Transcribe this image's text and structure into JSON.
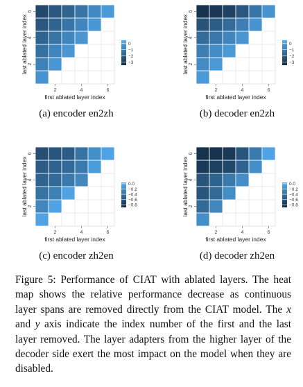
{
  "figure_caption": {
    "before_x": "Figure 5: Performance of CIAT with ablated layers. The heat map shows the relative performance decrease as continuous layer spans are removed directly from the CIAT model. The ",
    "x_var": "x",
    "and_text": " and ",
    "y_var": "y",
    "after_y": " axis indicate the index number of the first and the last layer removed. The layer adapters from the higher layer of the decoder side exert the most impact on the model when they are disabled."
  },
  "chart_data": [
    {
      "type": "heatmap",
      "caption": "(a) encoder en2zh",
      "xlabel": "first ablated layer index",
      "ylabel": "last ablated layer index",
      "x_ticks": [
        2,
        4,
        6
      ],
      "y_ticks": [
        2,
        4,
        6
      ],
      "xlim": [
        1,
        6
      ],
      "ylim": [
        1,
        6
      ],
      "grid": true,
      "legend": {
        "position": "right",
        "ticks": [
          "0",
          "−1",
          "−2",
          "−3"
        ],
        "range": [
          -3.5,
          0.5
        ]
      },
      "colors": {
        "low": "#132b43",
        "high": "#56b1f7"
      },
      "cells": [
        {
          "x": 1,
          "y": 1,
          "value": -0.4
        },
        {
          "x": 1,
          "y": 2,
          "value": -0.9
        },
        {
          "x": 2,
          "y": 2,
          "value": -0.3
        },
        {
          "x": 1,
          "y": 3,
          "value": -1.4
        },
        {
          "x": 2,
          "y": 3,
          "value": -0.8
        },
        {
          "x": 3,
          "y": 3,
          "value": -0.3
        },
        {
          "x": 1,
          "y": 4,
          "value": -1.8
        },
        {
          "x": 2,
          "y": 4,
          "value": -1.3
        },
        {
          "x": 3,
          "y": 4,
          "value": -0.8
        },
        {
          "x": 4,
          "y": 4,
          "value": -0.3
        },
        {
          "x": 1,
          "y": 5,
          "value": -2.2
        },
        {
          "x": 2,
          "y": 5,
          "value": -1.8
        },
        {
          "x": 3,
          "y": 5,
          "value": -1.3
        },
        {
          "x": 4,
          "y": 5,
          "value": -0.8
        },
        {
          "x": 5,
          "y": 5,
          "value": -0.3
        },
        {
          "x": 1,
          "y": 6,
          "value": -2.6
        },
        {
          "x": 2,
          "y": 6,
          "value": -2.2
        },
        {
          "x": 3,
          "y": 6,
          "value": -1.8
        },
        {
          "x": 4,
          "y": 6,
          "value": -1.3
        },
        {
          "x": 5,
          "y": 6,
          "value": -0.7
        },
        {
          "x": 6,
          "y": 6,
          "value": -0.2
        }
      ]
    },
    {
      "type": "heatmap",
      "caption": "(b) decoder en2zh",
      "xlabel": "first ablated layer index",
      "ylabel": "last ablated layer index",
      "x_ticks": [
        2,
        4,
        6
      ],
      "y_ticks": [
        2,
        4,
        6
      ],
      "xlim": [
        1,
        6
      ],
      "ylim": [
        1,
        6
      ],
      "grid": true,
      "legend": {
        "position": "right",
        "ticks": [
          "0",
          "−1",
          "−2",
          "−3"
        ],
        "range": [
          -3.5,
          0.5
        ]
      },
      "colors": {
        "low": "#132b43",
        "high": "#56b1f7"
      },
      "cells": [
        {
          "x": 1,
          "y": 1,
          "value": -0.2
        },
        {
          "x": 1,
          "y": 2,
          "value": -0.6
        },
        {
          "x": 2,
          "y": 2,
          "value": -0.2
        },
        {
          "x": 1,
          "y": 3,
          "value": -1.0
        },
        {
          "x": 2,
          "y": 3,
          "value": -0.6
        },
        {
          "x": 3,
          "y": 3,
          "value": -0.2
        },
        {
          "x": 1,
          "y": 4,
          "value": -1.6
        },
        {
          "x": 2,
          "y": 4,
          "value": -1.2
        },
        {
          "x": 3,
          "y": 4,
          "value": -0.8
        },
        {
          "x": 4,
          "y": 4,
          "value": -0.3
        },
        {
          "x": 1,
          "y": 5,
          "value": -2.3
        },
        {
          "x": 2,
          "y": 5,
          "value": -2.0
        },
        {
          "x": 3,
          "y": 5,
          "value": -1.6
        },
        {
          "x": 4,
          "y": 5,
          "value": -1.0
        },
        {
          "x": 5,
          "y": 5,
          "value": -0.4
        },
        {
          "x": 1,
          "y": 6,
          "value": -3.3
        },
        {
          "x": 2,
          "y": 6,
          "value": -3.1
        },
        {
          "x": 3,
          "y": 6,
          "value": -2.8
        },
        {
          "x": 4,
          "y": 6,
          "value": -2.2
        },
        {
          "x": 5,
          "y": 6,
          "value": -1.3
        },
        {
          "x": 6,
          "y": 6,
          "value": -0.4
        }
      ]
    },
    {
      "type": "heatmap",
      "caption": "(c) encoder zh2en",
      "xlabel": "first ablated layer index",
      "ylabel": "last ablated layer index",
      "x_ticks": [
        2,
        4,
        6
      ],
      "y_ticks": [
        2,
        4,
        6
      ],
      "xlim": [
        1,
        6
      ],
      "ylim": [
        1,
        6
      ],
      "grid": true,
      "legend": {
        "position": "right",
        "ticks": [
          "0.0",
          "−0.2",
          "−0.4",
          "−0.6",
          "−0.8"
        ],
        "range": [
          -0.9,
          0.05
        ]
      },
      "colors": {
        "low": "#132b43",
        "high": "#56b1f7"
      },
      "cells": [
        {
          "x": 1,
          "y": 1,
          "value": -0.05
        },
        {
          "x": 1,
          "y": 2,
          "value": -0.25
        },
        {
          "x": 2,
          "y": 2,
          "value": -0.05
        },
        {
          "x": 1,
          "y": 3,
          "value": -0.4
        },
        {
          "x": 2,
          "y": 3,
          "value": -0.3
        },
        {
          "x": 3,
          "y": 3,
          "value": -0.05
        },
        {
          "x": 1,
          "y": 4,
          "value": -0.5
        },
        {
          "x": 2,
          "y": 4,
          "value": -0.45
        },
        {
          "x": 3,
          "y": 4,
          "value": -0.35
        },
        {
          "x": 4,
          "y": 4,
          "value": -0.25
        },
        {
          "x": 1,
          "y": 5,
          "value": -0.55
        },
        {
          "x": 2,
          "y": 5,
          "value": -0.5
        },
        {
          "x": 3,
          "y": 5,
          "value": -0.45
        },
        {
          "x": 4,
          "y": 5,
          "value": -0.35
        },
        {
          "x": 5,
          "y": 5,
          "value": -0.1
        },
        {
          "x": 1,
          "y": 6,
          "value": -0.65
        },
        {
          "x": 2,
          "y": 6,
          "value": -0.6
        },
        {
          "x": 3,
          "y": 6,
          "value": -0.55
        },
        {
          "x": 4,
          "y": 6,
          "value": -0.4
        },
        {
          "x": 5,
          "y": 6,
          "value": -0.2
        },
        {
          "x": 6,
          "y": 6,
          "value": -0.05
        }
      ]
    },
    {
      "type": "heatmap",
      "caption": "(d) decoder zh2en",
      "xlabel": "first ablated layer index",
      "ylabel": "last ablated layer index",
      "x_ticks": [
        2,
        4,
        6
      ],
      "y_ticks": [
        2,
        4,
        6
      ],
      "xlim": [
        1,
        6
      ],
      "ylim": [
        1,
        6
      ],
      "grid": true,
      "legend": {
        "position": "right",
        "ticks": [
          "0.0",
          "−0.2",
          "−0.4",
          "−0.6",
          "−0.8"
        ],
        "range": [
          -0.9,
          0.05
        ]
      },
      "colors": {
        "low": "#132b43",
        "high": "#56b1f7"
      },
      "cells": [
        {
          "x": 1,
          "y": 1,
          "value": -0.2
        },
        {
          "x": 1,
          "y": 2,
          "value": -0.45
        },
        {
          "x": 2,
          "y": 2,
          "value": -0.25
        },
        {
          "x": 1,
          "y": 3,
          "value": -0.6
        },
        {
          "x": 2,
          "y": 3,
          "value": -0.45
        },
        {
          "x": 3,
          "y": 3,
          "value": -0.2
        },
        {
          "x": 1,
          "y": 4,
          "value": -0.6
        },
        {
          "x": 2,
          "y": 4,
          "value": -0.5
        },
        {
          "x": 3,
          "y": 4,
          "value": -0.35
        },
        {
          "x": 4,
          "y": 4,
          "value": -0.2
        },
        {
          "x": 1,
          "y": 5,
          "value": -0.8
        },
        {
          "x": 2,
          "y": 5,
          "value": -0.75
        },
        {
          "x": 3,
          "y": 5,
          "value": -0.7
        },
        {
          "x": 4,
          "y": 5,
          "value": -0.5
        },
        {
          "x": 5,
          "y": 5,
          "value": -0.2
        },
        {
          "x": 1,
          "y": 6,
          "value": -0.85
        },
        {
          "x": 2,
          "y": 6,
          "value": -0.85
        },
        {
          "x": 3,
          "y": 6,
          "value": -0.8
        },
        {
          "x": 4,
          "y": 6,
          "value": -0.6
        },
        {
          "x": 5,
          "y": 6,
          "value": -0.35
        },
        {
          "x": 6,
          "y": 6,
          "value": -0.05
        }
      ]
    }
  ]
}
